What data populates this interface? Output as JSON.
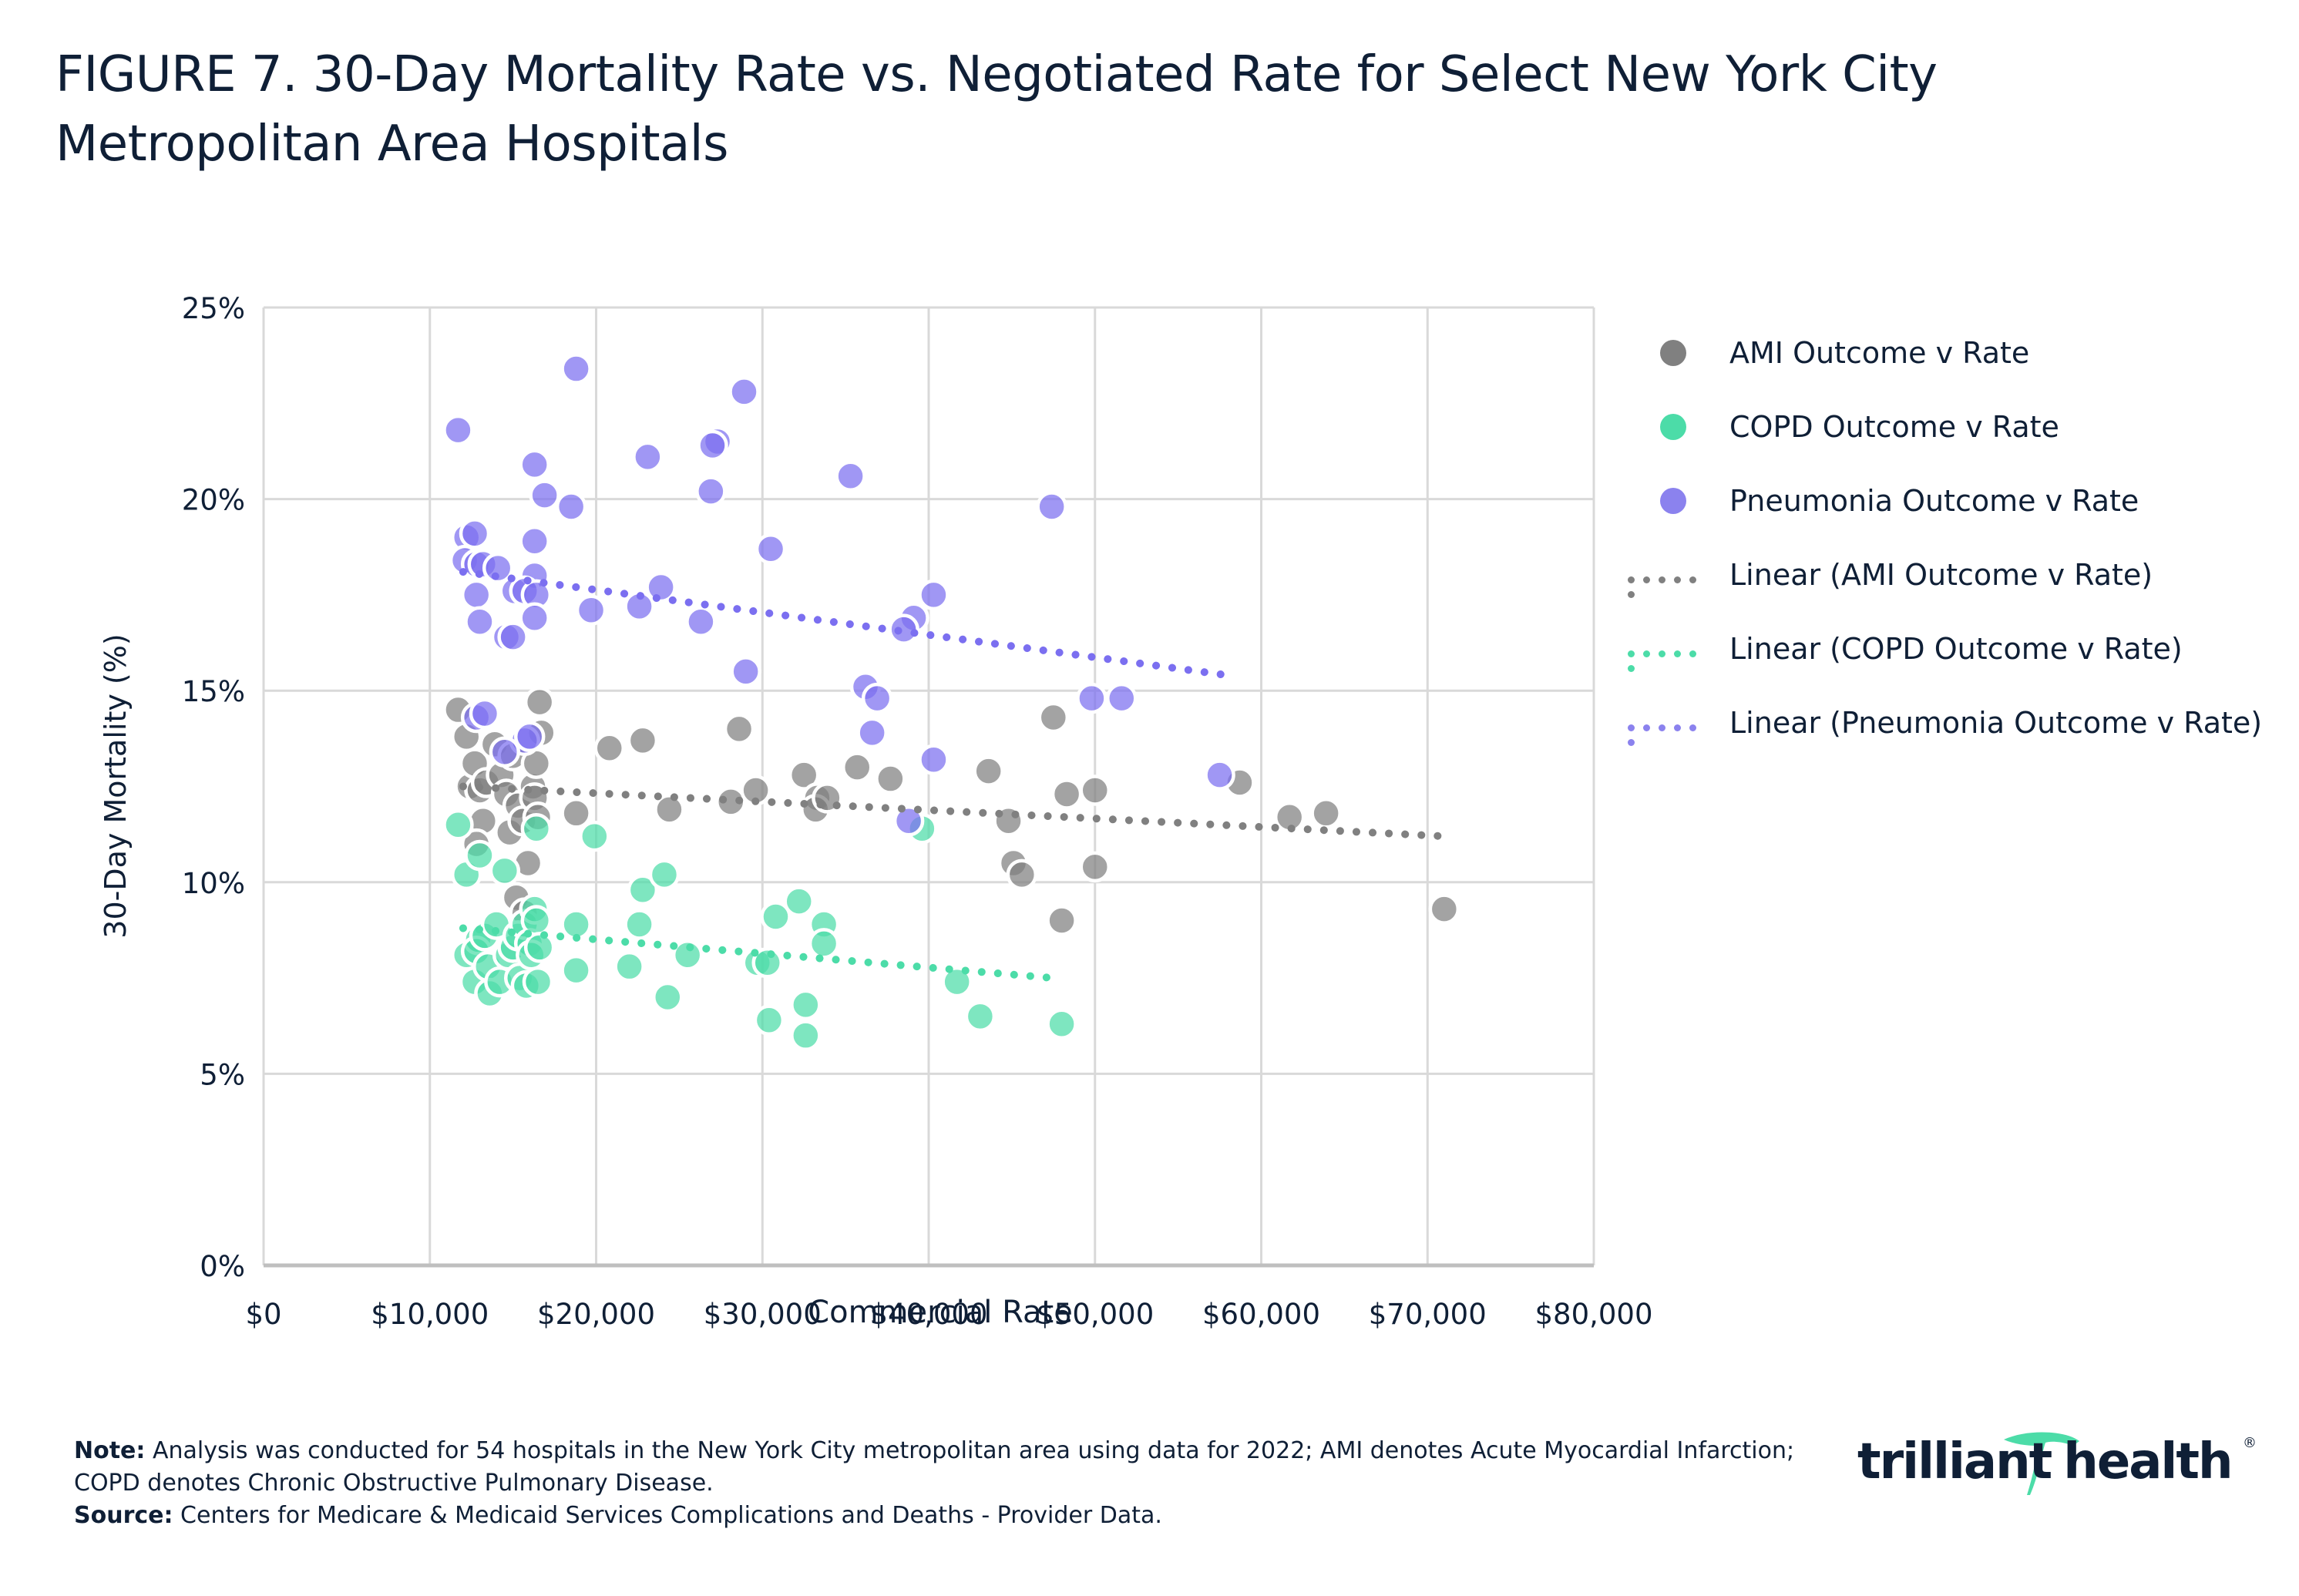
{
  "title": "FIGURE 7. 30-Day Mortality Rate vs. Negotiated Rate for Select New York City Metropolitan Area Hospitals",
  "chart_data": {
    "type": "scatter",
    "title": "FIGURE 7. 30-Day Mortality Rate vs. Negotiated Rate for Select New York City Metropolitan Area Hospitals",
    "xlabel": "Commercial Rate",
    "ylabel": "30-Day Mortality (%)",
    "xlim": [
      0,
      80000
    ],
    "ylim": [
      0,
      25
    ],
    "x_ticks": [
      0,
      10000,
      20000,
      30000,
      40000,
      50000,
      60000,
      70000,
      80000
    ],
    "x_tick_labels": [
      "$0",
      "$10,000",
      "$20,000",
      "$30,000",
      "$40,000",
      "$50,000",
      "$60,000",
      "$70,000",
      "$80,000"
    ],
    "y_ticks": [
      0,
      5,
      10,
      15,
      20,
      25
    ],
    "y_tick_labels": [
      "0%",
      "5%",
      "10%",
      "15%",
      "20%",
      "25%"
    ],
    "grid": true,
    "legend_position": "right",
    "series": [
      {
        "name": "AMI Outcome v Rate",
        "color": "#808080",
        "points": [
          [
            11700,
            14.5
          ],
          [
            12200,
            13.8
          ],
          [
            12400,
            12.5
          ],
          [
            12700,
            13.1
          ],
          [
            13000,
            12.4
          ],
          [
            13200,
            11.6
          ],
          [
            12800,
            11.0
          ],
          [
            13400,
            12.6
          ],
          [
            13900,
            13.6
          ],
          [
            14300,
            12.8
          ],
          [
            14600,
            12.3
          ],
          [
            14800,
            11.3
          ],
          [
            15000,
            13.3
          ],
          [
            15300,
            12.0
          ],
          [
            15600,
            11.6
          ],
          [
            15900,
            10.5
          ],
          [
            16200,
            12.5
          ],
          [
            16400,
            13.1
          ],
          [
            16600,
            14.7
          ],
          [
            16700,
            13.9
          ],
          [
            16300,
            12.2
          ],
          [
            15200,
            9.6
          ],
          [
            15700,
            9.2
          ],
          [
            16500,
            11.7
          ],
          [
            18800,
            11.8
          ],
          [
            20800,
            13.5
          ],
          [
            22800,
            13.7
          ],
          [
            24400,
            11.9
          ],
          [
            28100,
            12.1
          ],
          [
            28600,
            14.0
          ],
          [
            29600,
            12.4
          ],
          [
            32500,
            12.8
          ],
          [
            33300,
            12.2
          ],
          [
            33200,
            11.9
          ],
          [
            33900,
            12.2
          ],
          [
            35700,
            13.0
          ],
          [
            37700,
            12.7
          ],
          [
            43600,
            12.9
          ],
          [
            44800,
            11.6
          ],
          [
            45100,
            10.5
          ],
          [
            45600,
            10.2
          ],
          [
            47500,
            14.3
          ],
          [
            48000,
            9.0
          ],
          [
            48300,
            12.3
          ],
          [
            50000,
            12.4
          ],
          [
            50000,
            10.4
          ],
          [
            58700,
            12.6
          ],
          [
            61700,
            11.7
          ],
          [
            63900,
            11.8
          ],
          [
            71000,
            9.3
          ]
        ],
        "trendline": {
          "name": "Linear (AMI Outcome v Rate)",
          "from": [
            12000,
            12.5
          ],
          "to": [
            71000,
            11.2
          ]
        }
      },
      {
        "name": "COPD Outcome v Rate",
        "color": "#4cdca8",
        "points": [
          [
            11700,
            11.5
          ],
          [
            12200,
            10.2
          ],
          [
            12200,
            8.1
          ],
          [
            12700,
            7.4
          ],
          [
            12900,
            8.5
          ],
          [
            12800,
            8.2
          ],
          [
            13000,
            10.7
          ],
          [
            13300,
            8.6
          ],
          [
            13500,
            7.8
          ],
          [
            13600,
            7.1
          ],
          [
            14000,
            8.9
          ],
          [
            14200,
            7.4
          ],
          [
            14500,
            10.3
          ],
          [
            14700,
            8.1
          ],
          [
            15000,
            8.3
          ],
          [
            15300,
            8.6
          ],
          [
            15400,
            7.5
          ],
          [
            15700,
            8.9
          ],
          [
            15800,
            7.3
          ],
          [
            16000,
            8.4
          ],
          [
            16100,
            8.1
          ],
          [
            16300,
            9.3
          ],
          [
            16400,
            9.0
          ],
          [
            16500,
            7.4
          ],
          [
            16600,
            8.3
          ],
          [
            16400,
            11.4
          ],
          [
            18800,
            8.9
          ],
          [
            18800,
            7.7
          ],
          [
            19900,
            11.2
          ],
          [
            22000,
            7.8
          ],
          [
            22600,
            8.9
          ],
          [
            22800,
            9.8
          ],
          [
            24100,
            10.2
          ],
          [
            24300,
            7.0
          ],
          [
            25500,
            8.1
          ],
          [
            29700,
            7.9
          ],
          [
            30400,
            6.4
          ],
          [
            30800,
            9.1
          ],
          [
            32200,
            9.5
          ],
          [
            32600,
            6.8
          ],
          [
            32600,
            6.0
          ],
          [
            33700,
            8.9
          ],
          [
            33700,
            8.4
          ],
          [
            39600,
            11.4
          ],
          [
            41700,
            7.4
          ],
          [
            43100,
            6.5
          ],
          [
            48000,
            6.3
          ],
          [
            30300,
            7.9
          ]
        ],
        "trendline": {
          "name": "Linear (COPD Outcome v Rate)",
          "from": [
            12000,
            8.8
          ],
          "to": [
            47500,
            7.5
          ]
        }
      },
      {
        "name": "Pneumonia Outcome v Rate",
        "color": "#7b6ff0",
        "points": [
          [
            11700,
            21.8
          ],
          [
            18800,
            23.4
          ],
          [
            28900,
            22.8
          ],
          [
            27300,
            21.5
          ],
          [
            27000,
            21.4
          ],
          [
            16300,
            20.9
          ],
          [
            23100,
            21.1
          ],
          [
            26900,
            20.2
          ],
          [
            35300,
            20.6
          ],
          [
            16900,
            20.1
          ],
          [
            18500,
            19.8
          ],
          [
            47400,
            19.8
          ],
          [
            12200,
            19.0
          ],
          [
            12700,
            19.1
          ],
          [
            16300,
            18.9
          ],
          [
            30500,
            18.7
          ],
          [
            12100,
            18.4
          ],
          [
            12800,
            18.3
          ],
          [
            13200,
            18.3
          ],
          [
            14100,
            18.2
          ],
          [
            16300,
            18.0
          ],
          [
            12800,
            17.5
          ],
          [
            15100,
            17.6
          ],
          [
            15700,
            17.6
          ],
          [
            16400,
            17.5
          ],
          [
            23900,
            17.7
          ],
          [
            40300,
            17.5
          ],
          [
            19700,
            17.1
          ],
          [
            22600,
            17.2
          ],
          [
            39100,
            16.9
          ],
          [
            38500,
            16.6
          ],
          [
            13000,
            16.8
          ],
          [
            16300,
            16.9
          ],
          [
            26300,
            16.8
          ],
          [
            14600,
            16.4
          ],
          [
            15000,
            16.4
          ],
          [
            29000,
            15.5
          ],
          [
            36200,
            15.1
          ],
          [
            36900,
            14.8
          ],
          [
            49800,
            14.8
          ],
          [
            51600,
            14.8
          ],
          [
            12800,
            14.3
          ],
          [
            13300,
            14.4
          ],
          [
            36600,
            13.9
          ],
          [
            15700,
            13.7
          ],
          [
            16000,
            13.8
          ],
          [
            14500,
            13.4
          ],
          [
            40300,
            13.2
          ],
          [
            57500,
            12.8
          ],
          [
            38800,
            11.6
          ]
        ],
        "trendline": {
          "name": "Linear (Pneumonia Outcome v Rate)",
          "from": [
            12000,
            18.1
          ],
          "to": [
            58000,
            15.4
          ]
        }
      }
    ]
  },
  "legend": [
    {
      "label": "AMI Outcome v Rate",
      "kind": "dot",
      "color": "#808080"
    },
    {
      "label": "COPD Outcome v Rate",
      "kind": "dot",
      "color": "#4cdca8"
    },
    {
      "label": "Pneumonia Outcome v Rate",
      "kind": "dot",
      "color": "#8b82ee"
    },
    {
      "label": "Linear (AMI Outcome v Rate)",
      "kind": "line",
      "color": "#808080"
    },
    {
      "label": "Linear (COPD Outcome v Rate)",
      "kind": "line",
      "color": "#4cdca8"
    },
    {
      "label": "Linear (Pneumonia Outcome v Rate)",
      "kind": "line",
      "color": "#8b82ee"
    }
  ],
  "notes": {
    "note_label": "Note:",
    "note_text": " Analysis was conducted for 54 hospitals in the New York City metropolitan area using data for 2022; AMI denotes Acute Myocardial Infarction; COPD denotes Chronic Obstructive Pulmonary Disease.",
    "source_label": "Source:",
    "source_text": " Centers for Medicare & Medicaid Services Complications and Deaths - Provider Data."
  },
  "logo": {
    "text": "trilliant health",
    "word1": "trilliant",
    "word2": "health",
    "registered": "®",
    "accent_color": "#4cdca8"
  }
}
